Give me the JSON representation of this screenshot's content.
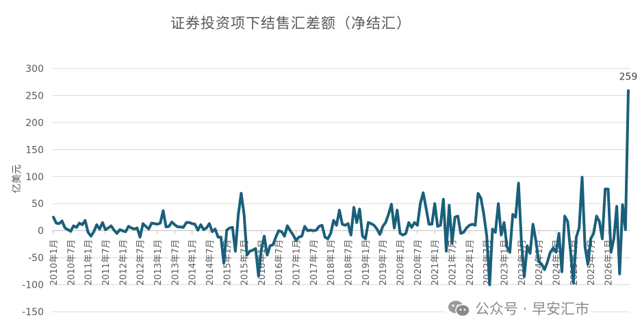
{
  "chart_data": {
    "type": "line",
    "title": "证券投资项下结售汇差额（净结汇）",
    "xlabel": "",
    "ylabel": "亿美元",
    "ylim": [
      -150,
      300
    ],
    "yticks": [
      300,
      250,
      200,
      150,
      100,
      50,
      0,
      -50,
      -100,
      -150
    ],
    "grid": true,
    "legend": "none",
    "line_color": "#1a5f7a",
    "x_start": "2010年1月",
    "x_end": "2026年1月",
    "x_tick_labels": [
      "2010年1月",
      "2010年7月",
      "2011年1月",
      "2011年7月",
      "2012年1月",
      "2012年7月",
      "2013年1月",
      "2013年7月",
      "2014年1月",
      "2014年7月",
      "2015年1月",
      "2015年7月",
      "2016年1月",
      "2016年7月",
      "2017年1月",
      "2017年7月",
      "2018年1月",
      "2018年7月",
      "2019年1月",
      "2019年7月",
      "2020年1月",
      "2020年7月",
      "2021年1月",
      "2021年7月",
      "2022年1月",
      "2022年7月",
      "2023年1月",
      "2023年7月",
      "2024年1月",
      "2024年7月",
      "2025年1月",
      "2025年7月",
      "2026年1月"
    ],
    "annotations": [
      {
        "label": "259",
        "x": "2026年1月",
        "y": 259
      }
    ],
    "series": [
      {
        "name": "证券投资项下结售汇差额",
        "values": [
          25,
          14,
          13,
          18,
          5,
          2,
          -1,
          9,
          6,
          14,
          11,
          19,
          -3,
          -10,
          -2,
          11,
          3,
          15,
          2,
          5,
          9,
          1,
          -5,
          2,
          0,
          -2,
          8,
          5,
          3,
          5,
          -12,
          13,
          8,
          3,
          14,
          13,
          12,
          14,
          37,
          7,
          8,
          16,
          11,
          7,
          7,
          6,
          15,
          15,
          13,
          12,
          1,
          11,
          2,
          5,
          13,
          -2,
          3,
          -12,
          -12,
          -60,
          1,
          5,
          6,
          -38,
          30,
          69,
          30,
          -45,
          -38,
          -36,
          -33,
          -84,
          -35,
          -10,
          -45,
          -28,
          -26,
          -12,
          0,
          -2,
          -10,
          9,
          0,
          -8,
          -18,
          -12,
          -10,
          8,
          0,
          1,
          0,
          1,
          8,
          10,
          -12,
          -15,
          -5,
          19,
          10,
          38,
          12,
          10,
          13,
          -8,
          43,
          15,
          40,
          -10,
          -15,
          15,
          13,
          10,
          3,
          -7,
          8,
          15,
          30,
          49,
          5,
          38,
          -5,
          -8,
          -5,
          15,
          6,
          15,
          10,
          50,
          70,
          42,
          12,
          12,
          50,
          8,
          10,
          58,
          -38,
          47,
          -23,
          25,
          27,
          -5,
          -3,
          5,
          10,
          12,
          10,
          69,
          60,
          30,
          -10,
          -100,
          3,
          -3,
          50,
          -8,
          15,
          -30,
          -40,
          30,
          25,
          88,
          -20,
          -85,
          -28,
          -42,
          12,
          -18,
          -57,
          -62,
          -72,
          -58,
          -40,
          -32,
          -40,
          -5,
          -76,
          27,
          17,
          -38,
          -97,
          -12,
          5,
          99,
          -30,
          -62,
          -15,
          -5,
          27,
          17,
          -15,
          77,
          77,
          -40,
          -15,
          45,
          -80,
          48,
          2,
          259
        ]
      }
    ]
  },
  "watermark": {
    "text": "公众号 · 早安汇市",
    "icon": "wechat-icon"
  }
}
